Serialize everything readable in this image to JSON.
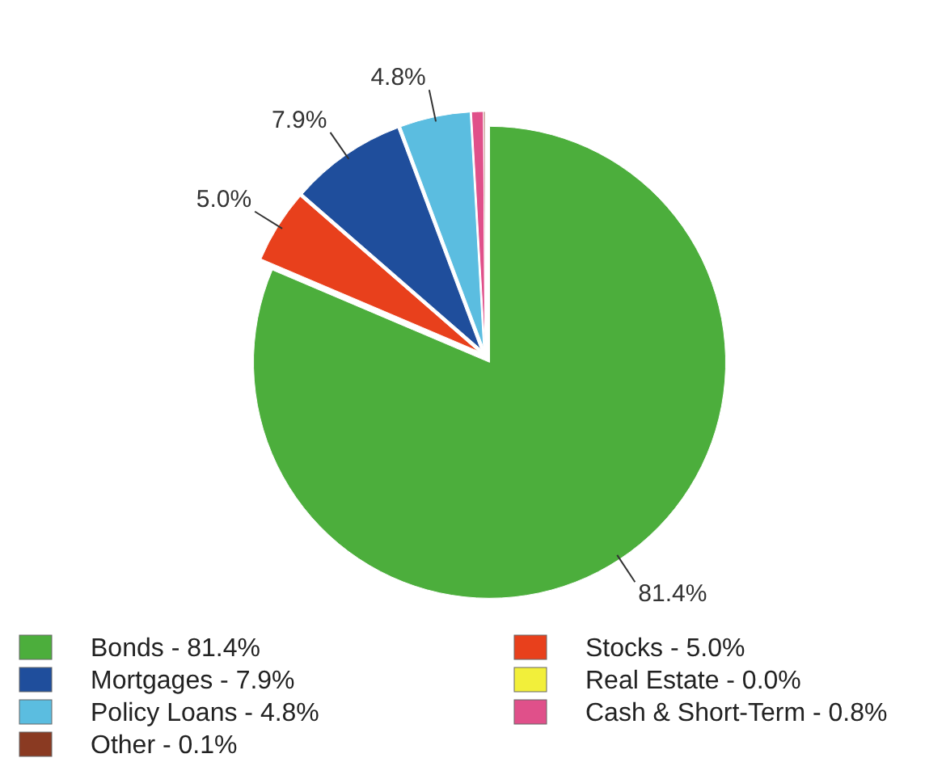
{
  "chart_data": {
    "type": "pie",
    "categories": [
      "Bonds - 81.4%",
      "Stocks - 5.0%",
      "Mortgages - 7.9%",
      "Real Estate - 0.0%",
      "Policy Loans - 4.8%",
      "Cash & Short-Term - 0.8%",
      "Other - 0.1%"
    ],
    "values": [
      81.4,
      5.0,
      7.9,
      0.0,
      4.8,
      0.8,
      0.1
    ],
    "colors": [
      "#4cae3c",
      "#e8401c",
      "#1f4e9c",
      "#f2ef3a",
      "#5bbde0",
      "#e0508a",
      "#8a3a22"
    ],
    "value_labels": [
      "81.4%",
      "5.0%",
      "7.9%",
      null,
      "4.8%",
      null,
      null
    ],
    "legend": "bottom"
  }
}
